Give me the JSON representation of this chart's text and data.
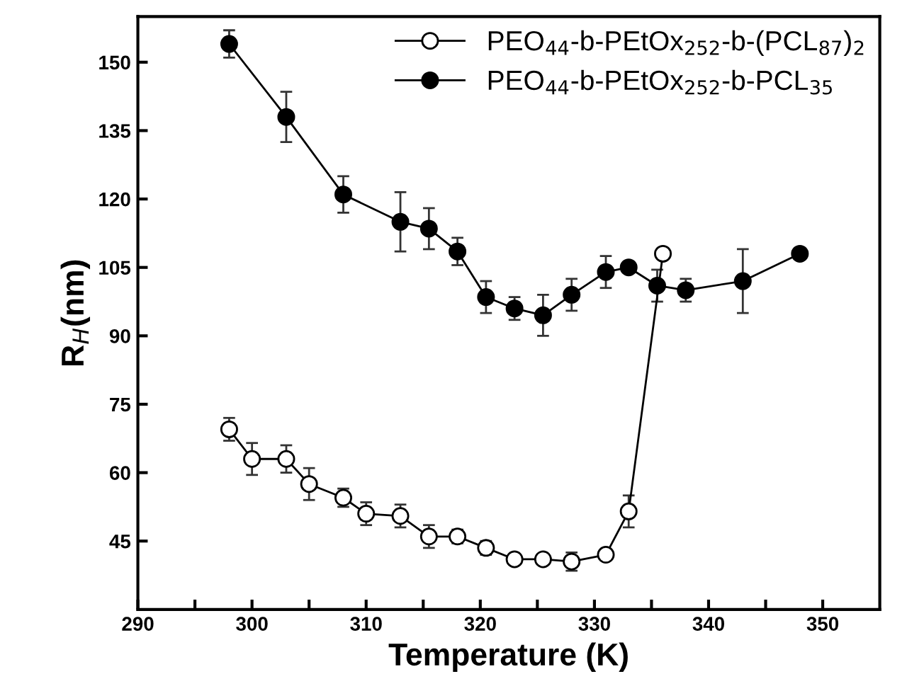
{
  "chart_data": {
    "type": "line",
    "xlabel": "Temperature (K)",
    "ylabel": "R$_{H}$(nm)",
    "xlim": [
      290,
      355
    ],
    "ylim": [
      30,
      160
    ],
    "xticks": [
      290,
      {
        "value": 295,
        "label": null
      },
      300,
      {
        "value": 305,
        "label": null
      },
      310,
      {
        "value": 315,
        "label": null
      },
      320,
      {
        "value": 325,
        "label": null
      },
      330,
      {
        "value": 335,
        "label": null
      },
      340,
      {
        "value": 345,
        "label": null
      },
      350
    ],
    "yticks": [
      45,
      60,
      75,
      90,
      105,
      120,
      135,
      150
    ],
    "marker": "circle",
    "legend": "top right",
    "grid": false,
    "series": [
      {
        "name": "PEO$_{44}$-b-PEtOx$_{252}$-b-(PCL$_{87}$)$_{2}$",
        "color": "#000000",
        "x": [
          298,
          300,
          303,
          305,
          308,
          310,
          313,
          315.5,
          318,
          320.5,
          323,
          325.5,
          328,
          331,
          333,
          336
        ],
        "values": [
          69.5,
          63,
          63,
          57.5,
          54.5,
          51,
          50.5,
          46,
          46,
          43.5,
          41,
          41,
          40.5,
          42,
          51.5,
          108
        ],
        "errors": [
          2.5,
          3.5,
          3,
          3.5,
          2,
          2.5,
          2.5,
          2.5,
          1.5,
          1.5,
          1,
          1,
          2,
          1,
          3.5,
          null
        ]
      },
      {
        "name": "PEO$_{44}$-b-PEtOx$_{252}$-b-PCL$_{35}$",
        "color": "#000000",
        "x": [
          298,
          303,
          308,
          313,
          315.5,
          318,
          320.5,
          323,
          325.5,
          328,
          331,
          333,
          335.5,
          338,
          343,
          348
        ],
        "values": [
          154,
          138,
          121,
          115,
          113.5,
          108.5,
          98.5,
          96,
          94.5,
          99,
          104,
          105,
          101,
          100,
          102,
          108
        ],
        "errors": [
          3,
          5.5,
          4,
          6.5,
          4.5,
          3,
          3.5,
          2.5,
          4.5,
          3.5,
          3.5,
          1,
          3.5,
          2.5,
          7,
          null
        ]
      }
    ]
  }
}
